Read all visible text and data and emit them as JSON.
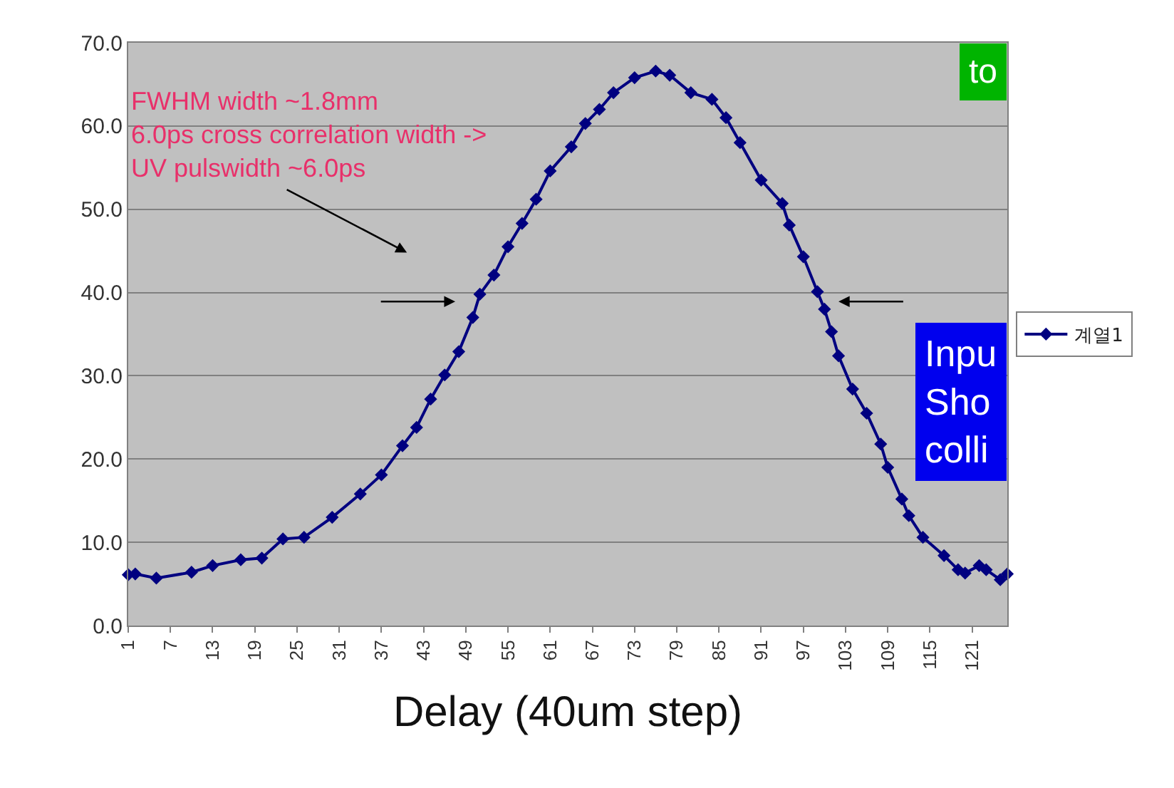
{
  "chart_data": {
    "type": "line",
    "xlabel": "Delay (40um step)",
    "x": [
      1,
      2,
      5,
      10,
      13,
      17,
      20,
      23,
      26,
      30,
      34,
      37,
      40,
      42,
      44,
      46,
      48,
      50,
      51,
      53,
      55,
      57,
      59,
      61,
      64,
      66,
      68,
      70,
      73,
      76,
      78,
      81,
      84,
      86,
      88,
      91,
      94,
      95,
      97,
      99,
      100,
      101,
      102,
      104,
      106,
      108,
      109,
      111,
      112,
      114,
      117,
      119,
      120,
      122,
      123,
      125,
      126
    ],
    "series": [
      {
        "name": "계열1",
        "color": "#000080",
        "values": [
          6.1,
          6.2,
          5.7,
          6.4,
          7.2,
          7.9,
          8.1,
          10.4,
          10.6,
          13.0,
          15.8,
          18.1,
          21.6,
          23.8,
          27.2,
          30.1,
          32.9,
          37.0,
          39.8,
          42.1,
          45.5,
          48.3,
          51.2,
          54.6,
          57.5,
          60.3,
          62.0,
          64.0,
          65.8,
          66.6,
          66.1,
          64.0,
          63.2,
          61.0,
          58.0,
          53.5,
          50.7,
          48.1,
          44.3,
          40.1,
          38.0,
          35.3,
          32.4,
          28.4,
          25.5,
          21.8,
          19.0,
          15.2,
          13.2,
          10.6,
          8.4,
          6.7,
          6.3,
          7.2,
          6.7,
          5.5,
          6.2
        ]
      }
    ],
    "xlim": [
      1,
      126
    ],
    "xticks": [
      1,
      7,
      13,
      19,
      25,
      31,
      37,
      43,
      49,
      55,
      61,
      67,
      73,
      79,
      85,
      91,
      97,
      103,
      109,
      115,
      121
    ],
    "ylim": [
      0,
      70
    ],
    "yticks": [
      {
        "value": 0,
        "label": "0.0"
      },
      {
        "value": 10,
        "label": "10.0"
      },
      {
        "value": 20,
        "label": "20.0"
      },
      {
        "value": 30,
        "label": "30.0"
      },
      {
        "value": 40,
        "label": "40.0"
      },
      {
        "value": 50,
        "label": "50.0"
      },
      {
        "value": 60,
        "label": "60.0"
      },
      {
        "value": 70,
        "label": "70.0"
      }
    ],
    "grid": "y",
    "legend": "right",
    "marker": "diamond",
    "line_style": "solid",
    "annotations": [
      "FWHM width ~1.8mm\n6.0ps cross correlation width ->\nUV pulswidth ~6.0ps",
      "to",
      "Inpu\nSho\ncolli"
    ]
  }
}
